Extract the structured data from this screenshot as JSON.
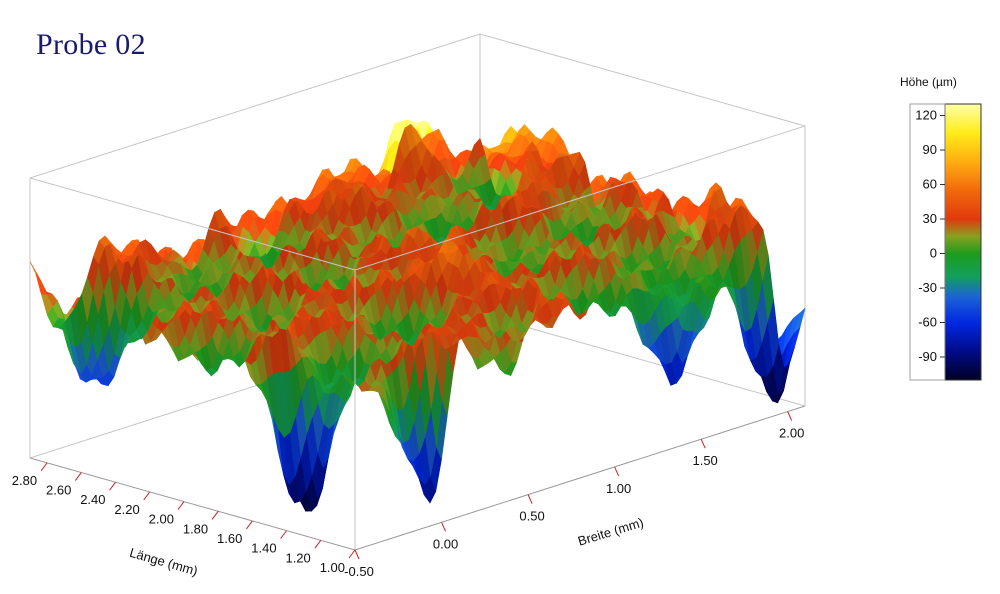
{
  "title": "Probe 02",
  "colorbar": {
    "title": "Höhe (µm)",
    "ticks": [
      120,
      90,
      60,
      30,
      0,
      -30,
      -60,
      -90
    ],
    "range": [
      -110,
      130
    ],
    "stops": [
      {
        "v": -110,
        "color": "#000024"
      },
      {
        "v": -85,
        "color": "#000b8a"
      },
      {
        "v": -60,
        "color": "#0028e0"
      },
      {
        "v": -38,
        "color": "#1c62d8"
      },
      {
        "v": -20,
        "color": "#12a05a"
      },
      {
        "v": 0,
        "color": "#1e9c1e"
      },
      {
        "v": 15,
        "color": "#8aa020"
      },
      {
        "v": 30,
        "color": "#e03a0e"
      },
      {
        "v": 55,
        "color": "#f26a0c"
      },
      {
        "v": 80,
        "color": "#ffae10"
      },
      {
        "v": 105,
        "color": "#ffec1a"
      },
      {
        "v": 130,
        "color": "#ffffa8"
      }
    ]
  },
  "chart_data": {
    "type": "surface3d",
    "title": "Probe 02",
    "x_axis": {
      "label": "Länge (mm)",
      "range": [
        1.0,
        2.9
      ],
      "ticks": [
        "1.00",
        "1.20",
        "1.40",
        "1.60",
        "1.80",
        "2.00",
        "2.20",
        "2.40",
        "2.60",
        "2.80"
      ]
    },
    "y_axis": {
      "label": "Breite (mm)",
      "range": [
        -0.5,
        2.1
      ],
      "ticks": [
        "-0.50",
        "0.00",
        "0.50",
        "1.00",
        "1.50",
        "2.00"
      ]
    },
    "z_axis": {
      "label": "Höhe (µm)",
      "range": [
        -110,
        130
      ]
    },
    "peaks": [
      {
        "x": 1.05,
        "y": 0.1,
        "z": 120
      },
      {
        "x": 1.2,
        "y": 0.95,
        "z": 125
      },
      {
        "x": 1.85,
        "y": 0.9,
        "z": 120
      },
      {
        "x": 2.3,
        "y": 1.1,
        "z": 125
      },
      {
        "x": 1.75,
        "y": -0.3,
        "z": 85
      },
      {
        "x": 2.35,
        "y": 1.75,
        "z": 70
      },
      {
        "x": 2.2,
        "y": 0.45,
        "z": 60
      }
    ],
    "valleys": [
      {
        "x": 1.0,
        "y": -0.05,
        "z": -105
      },
      {
        "x": 1.5,
        "y": -0.3,
        "z": -100
      },
      {
        "x": 1.25,
        "y": 1.6,
        "z": -85
      },
      {
        "x": 1.1,
        "y": 2.0,
        "z": -80
      },
      {
        "x": 2.75,
        "y": -0.3,
        "z": -65
      }
    ]
  }
}
